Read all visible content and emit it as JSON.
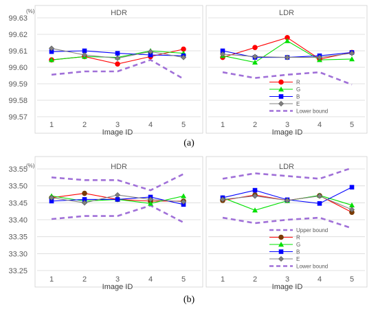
{
  "colors": {
    "R": "#ff0000",
    "G": "#00e000",
    "B": "#0000ff",
    "E": "#808080",
    "bound": "#a070d8",
    "darkR": "#7a3a00",
    "grid": "#d9d9d9",
    "axis": "#a6a6a6"
  },
  "icons": {
    "R": "circle",
    "G": "triangle",
    "B": "square",
    "E": "diamond"
  },
  "chart_data": [
    {
      "type": "line",
      "panel_label": "(a)",
      "y_unit": "(%)",
      "xlabel": "Image ID",
      "x": [
        1,
        2,
        3,
        4,
        5
      ],
      "ylim": [
        99.57,
        99.63
      ],
      "yticks": [
        "99.57",
        "99.58",
        "99.59",
        "99.60",
        "99.61",
        "99.62",
        "99.63"
      ],
      "grid": true,
      "subcharts": [
        {
          "title": "HDR",
          "series": [
            {
              "key": "R",
              "values": [
                99.6045,
                99.6065,
                99.602,
                99.6065,
                99.611
              ]
            },
            {
              "key": "G",
              "values": [
                99.6045,
                99.6065,
                99.606,
                99.61,
                99.6085
              ]
            },
            {
              "key": "B",
              "values": [
                99.6095,
                99.61,
                99.6085,
                99.6075,
                99.607
              ]
            },
            {
              "key": "E",
              "values": [
                99.6115,
                99.6075,
                99.6055,
                99.6095,
                99.606
              ]
            },
            {
              "key": "Lower bound",
              "values": [
                99.5955,
                99.5975,
                99.5975,
                99.6045,
                99.593
              ]
            }
          ]
        },
        {
          "title": "LDR",
          "series": [
            {
              "key": "R",
              "values": [
                99.606,
                99.612,
                99.618,
                99.605,
                99.609
              ]
            },
            {
              "key": "G",
              "values": [
                99.607,
                99.603,
                99.616,
                99.6045,
                99.605
              ]
            },
            {
              "key": "B",
              "values": [
                99.61,
                99.606,
                99.606,
                99.607,
                99.609
              ]
            },
            {
              "key": "E",
              "values": [
                99.608,
                99.6065,
                99.606,
                99.606,
                99.6085
              ]
            },
            {
              "key": "Lower bound",
              "values": [
                99.597,
                99.5935,
                99.5955,
                99.597,
                99.5895
              ]
            }
          ]
        }
      ],
      "legend": {
        "placement": "bottom-right of LDR panel",
        "entries": [
          {
            "key": "R",
            "label": "R"
          },
          {
            "key": "G",
            "label": "G"
          },
          {
            "key": "B",
            "label": "B"
          },
          {
            "key": "E",
            "label": "E"
          },
          {
            "key": "Lower bound",
            "label": "Lower bound"
          }
        ]
      }
    },
    {
      "type": "line",
      "panel_label": "(b)",
      "y_unit": "(%)",
      "xlabel": "Image ID",
      "x": [
        1,
        2,
        3,
        4,
        5
      ],
      "ylim": [
        33.25,
        33.55
      ],
      "yticks": [
        "33.25",
        "33.30",
        "33.35",
        "33.40",
        "33.45",
        "33.50",
        "33.55"
      ],
      "grid": true,
      "subcharts": [
        {
          "title": "HDR",
          "series": [
            {
              "key": "Upper bound",
              "values": [
                33.525,
                33.517,
                33.517,
                33.487,
                33.535
              ]
            },
            {
              "key": "R",
              "values": [
                33.465,
                33.478,
                33.46,
                33.455,
                33.455
              ]
            },
            {
              "key": "G",
              "values": [
                33.47,
                33.455,
                33.46,
                33.448,
                33.47
              ]
            },
            {
              "key": "B",
              "values": [
                33.455,
                33.46,
                33.46,
                33.467,
                33.445
              ]
            },
            {
              "key": "E",
              "values": [
                33.465,
                33.45,
                33.473,
                33.46,
                33.453
              ]
            },
            {
              "key": "Lower bound",
              "values": [
                33.402,
                33.411,
                33.411,
                33.442,
                33.392
              ]
            }
          ]
        },
        {
          "title": "LDR",
          "series": [
            {
              "key": "Upper bound",
              "values": [
                33.521,
                33.537,
                33.529,
                33.521,
                33.553
              ]
            },
            {
              "key": "R",
              "values": [
                33.457,
                33.473,
                33.457,
                33.471,
                33.422
              ]
            },
            {
              "key": "G",
              "values": [
                33.465,
                33.428,
                33.456,
                33.472,
                33.443
              ]
            },
            {
              "key": "B",
              "values": [
                33.465,
                33.487,
                33.459,
                33.448,
                33.496
              ]
            },
            {
              "key": "E",
              "values": [
                33.46,
                33.47,
                33.457,
                33.47,
                33.43
              ]
            },
            {
              "key": "Lower bound",
              "values": [
                33.406,
                33.39,
                33.4,
                33.406,
                33.375
              ]
            }
          ]
        }
      ],
      "legend": {
        "placement": "bottom-right of LDR panel",
        "entries": [
          {
            "key": "Upper bound",
            "label": "Upper bound"
          },
          {
            "key": "R",
            "label": "R"
          },
          {
            "key": "G",
            "label": "G"
          },
          {
            "key": "B",
            "label": "B"
          },
          {
            "key": "E",
            "label": "E"
          },
          {
            "key": "Lower bound",
            "label": "Lower bound"
          }
        ]
      }
    }
  ]
}
